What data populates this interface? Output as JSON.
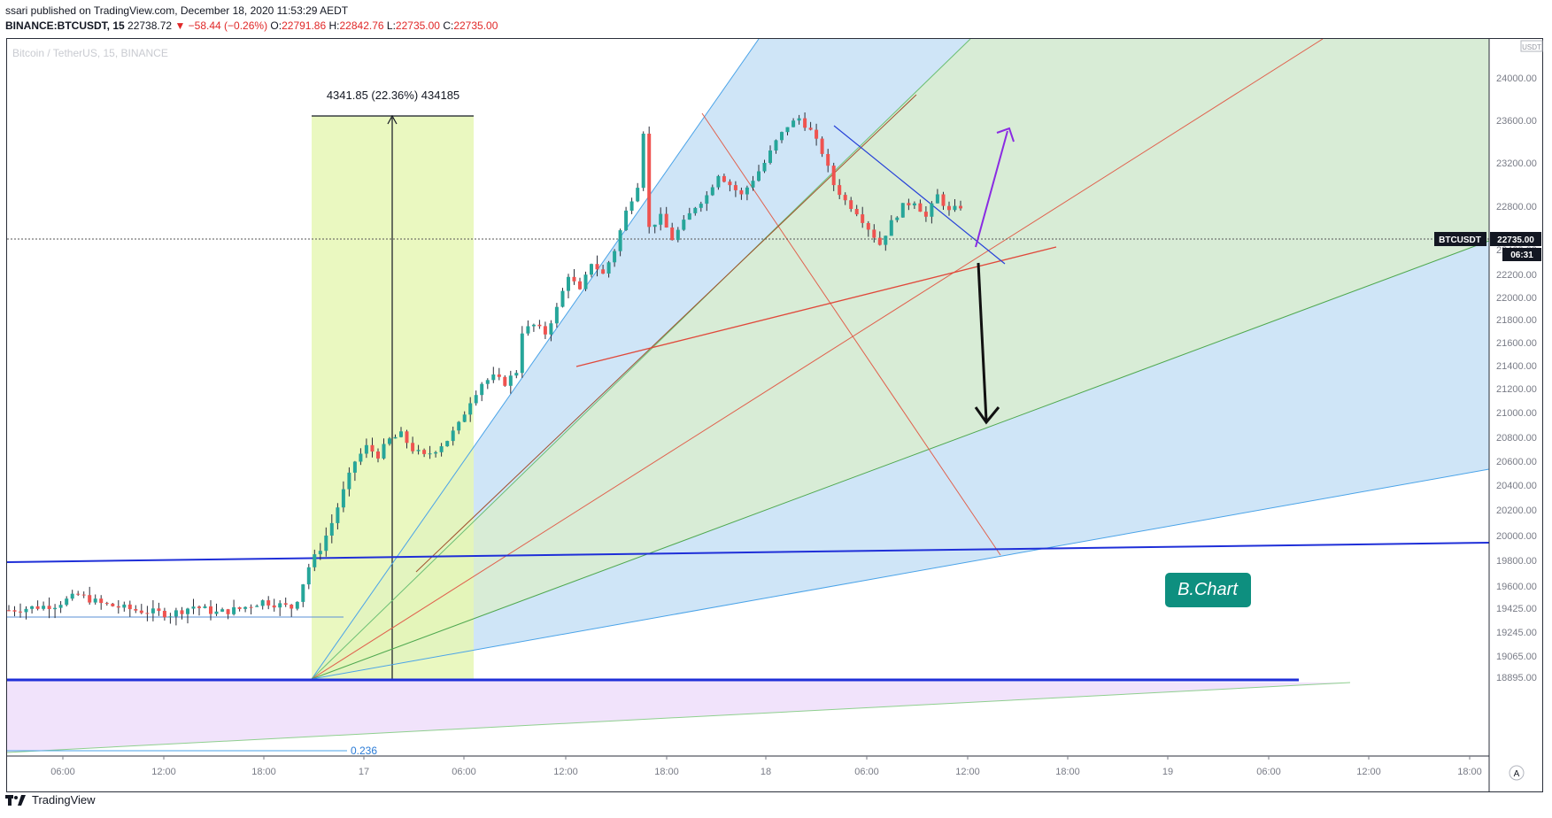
{
  "header": {
    "line1": "ssari published on TradingView.com, December 18, 2020 11:53:29 AEDT",
    "symbol": "BINANCE:BTCUSDT, 15",
    "last": "22738.72",
    "change": "−58.44 (−0.26%)",
    "o_label": "O:",
    "o": "22791.86",
    "h_label": "H:",
    "h": "22842.76",
    "l_label": "L:",
    "l": "22735.00",
    "c": "22735.00"
  },
  "chart_watermark": "Bitcoin / TetherUS, 15, BINANCE",
  "measure_label": "4341.85 (22.36%) 434185",
  "fib_label": "0.236",
  "brand_badge": "B.Chart",
  "price_badge": {
    "symbol": "BTCUSDT",
    "price": "22735.00",
    "countdown": "06:31"
  },
  "axis_unit": "USDT",
  "footer_brand": "TradingView",
  "auto_button": "A",
  "colors": {
    "up": "#26a69a",
    "down": "#ef5350",
    "fan_blue": "#cfe5f7",
    "fan_green": "#d8ecd6",
    "measure": "#e6f7b5",
    "purple_zone": "#f1e3fb",
    "level": "#1f2fd8",
    "badge": "#0e8f7f"
  },
  "chart_data": {
    "type": "candlestick",
    "symbol": "BTCUSDT",
    "interval": "15",
    "y_ticks": [
      24000,
      23600,
      23200,
      22800,
      22400,
      22200,
      22000,
      21800,
      21600,
      21400,
      21200,
      21000,
      20800,
      20600,
      20400,
      20200,
      20000,
      19800,
      19600,
      19425,
      19245,
      19065,
      18895
    ],
    "x_ticks": [
      "06:00",
      "12:00",
      "18:00",
      "17",
      "06:00",
      "12:00",
      "18:00",
      "18",
      "06:00",
      "12:00",
      "18:00",
      "19",
      "06:00",
      "12:00",
      "18:00"
    ],
    "path": [
      [
        0,
        19410
      ],
      [
        8,
        19450
      ],
      [
        12,
        19530
      ],
      [
        16,
        19460
      ],
      [
        22,
        19410
      ],
      [
        28,
        19380
      ],
      [
        32,
        19440
      ],
      [
        36,
        19390
      ],
      [
        40,
        19420
      ],
      [
        44,
        19480
      ],
      [
        49,
        19430
      ],
      [
        50,
        19500
      ],
      [
        52,
        19750
      ],
      [
        54,
        19900
      ],
      [
        56,
        20100
      ],
      [
        58,
        20350
      ],
      [
        60,
        20600
      ],
      [
        62,
        20720
      ],
      [
        64,
        20650
      ],
      [
        66,
        20780
      ],
      [
        68,
        20820
      ],
      [
        70,
        20700
      ],
      [
        72,
        20640
      ],
      [
        74,
        20700
      ],
      [
        76,
        20780
      ],
      [
        78,
        20900
      ],
      [
        80,
        21100
      ],
      [
        82,
        21250
      ],
      [
        84,
        21300
      ],
      [
        86,
        21250
      ],
      [
        88,
        21350
      ],
      [
        89,
        21700
      ],
      [
        91,
        21750
      ],
      [
        93,
        21680
      ],
      [
        95,
        21900
      ],
      [
        97,
        22200
      ],
      [
        99,
        22050
      ],
      [
        101,
        22300
      ],
      [
        103,
        22200
      ],
      [
        105,
        22400
      ],
      [
        107,
        22750
      ],
      [
        109,
        23000
      ],
      [
        110,
        23500
      ],
      [
        111,
        22600
      ],
      [
        113,
        22700
      ],
      [
        115,
        22500
      ],
      [
        117,
        22650
      ],
      [
        119,
        22800
      ],
      [
        121,
        22900
      ],
      [
        123,
        23100
      ],
      [
        125,
        23000
      ],
      [
        127,
        22900
      ],
      [
        129,
        23050
      ],
      [
        131,
        23200
      ],
      [
        133,
        23400
      ],
      [
        135,
        23550
      ],
      [
        137,
        23620
      ],
      [
        139,
        23500
      ],
      [
        141,
        23300
      ],
      [
        143,
        23000
      ],
      [
        145,
        22850
      ],
      [
        147,
        22750
      ],
      [
        149,
        22600
      ],
      [
        151,
        22450
      ],
      [
        153,
        22650
      ],
      [
        155,
        22800
      ],
      [
        157,
        22850
      ],
      [
        159,
        22700
      ],
      [
        161,
        22900
      ],
      [
        163,
        22750
      ],
      [
        165,
        22800
      ]
    ],
    "annotations": {
      "measure": {
        "from": 19425,
        "to": 23767,
        "change": "4341.85 (22.36%)"
      },
      "horizontal_levels": [
        19425,
        20250
      ],
      "projection_up_target": 23580,
      "projection_down_target": 21300
    }
  }
}
